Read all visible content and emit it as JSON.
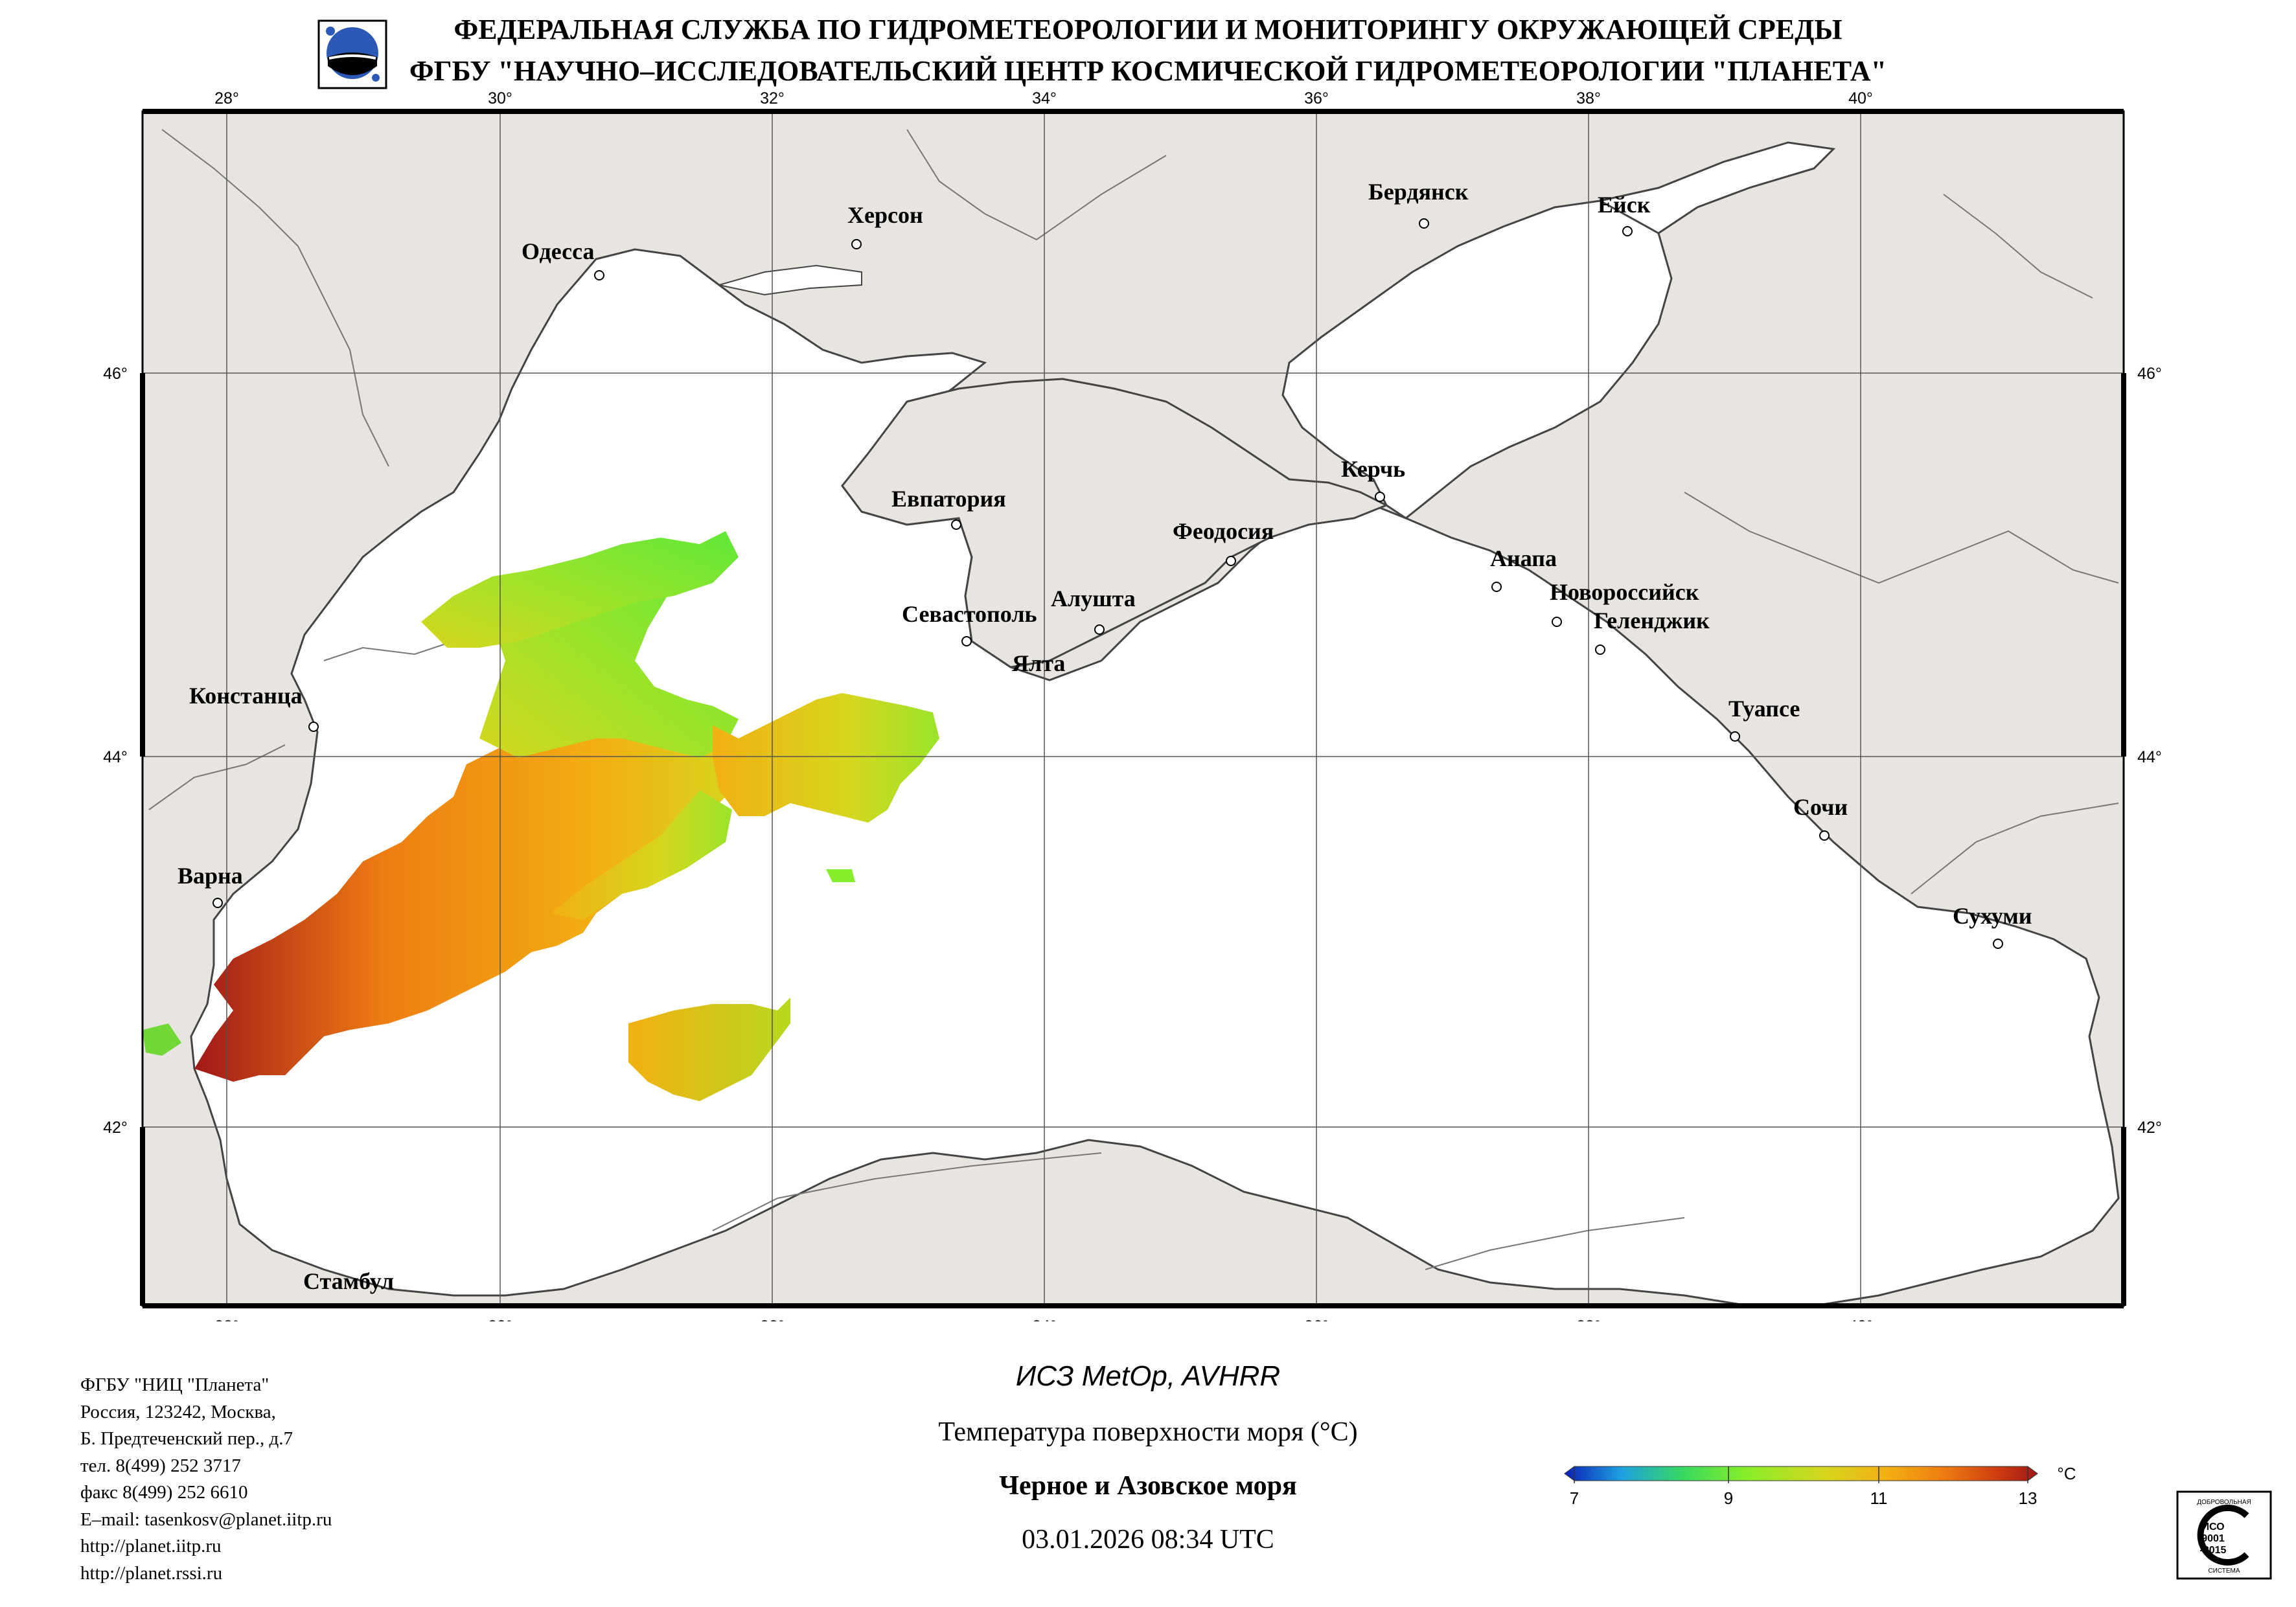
{
  "header": {
    "line1": "ФЕДЕРАЛЬНАЯ СЛУЖБА ПО ГИДРОМЕТЕОРОЛОГИИ И МОНИТОРИНГУ ОКРУЖАЮЩЕЙ СРЕДЫ",
    "line2": "ФГБУ \"НАУЧНО–ИССЛЕДОВАТЕЛЬСКИЙ ЦЕНТР КОСМИЧЕСКОЙ ГИДРОМЕТЕОРОЛОГИИ \"ПЛАНЕТА\""
  },
  "map": {
    "lon_labels": [
      "28°",
      "30°",
      "32°",
      "34°",
      "36°",
      "38°",
      "40°"
    ],
    "lat_labels": [
      "46°",
      "44°",
      "42°"
    ],
    "cities": [
      {
        "name": "Одесса"
      },
      {
        "name": "Херсон"
      },
      {
        "name": "Бердянск"
      },
      {
        "name": "Ейск"
      },
      {
        "name": "Евпатория"
      },
      {
        "name": "Керчь"
      },
      {
        "name": "Феодосия"
      },
      {
        "name": "Анапа"
      },
      {
        "name": "Новороссийск"
      },
      {
        "name": "Геленджик"
      },
      {
        "name": "Севастополь"
      },
      {
        "name": "Алушта"
      },
      {
        "name": "Ялта"
      },
      {
        "name": "Констанца"
      },
      {
        "name": "Туапсе"
      },
      {
        "name": "Сочи"
      },
      {
        "name": "Варна"
      },
      {
        "name": "Сухуми"
      },
      {
        "name": "Стамбул"
      }
    ],
    "colors": {
      "land": "#e8e5e1",
      "sea": "#ffffff",
      "grid": "#555555",
      "coast": "#444444"
    }
  },
  "footer": {
    "org_lines": [
      "ФГБУ \"НИЦ \"Планета\"",
      "Россия, 123242, Москва,",
      "Б. Предтеченский пер., д.7",
      "тел. 8(499) 252 3717",
      "факс 8(499) 252 6610",
      "E–mail: tasenkosv@planet.iitp.ru",
      "http://planet.iitp.ru",
      "http://planet.rssi.ru"
    ],
    "satellite": "ИСЗ MetOp, AVHRR",
    "parameter": "Температура поверхности моря (°С)",
    "region": "Черное и Азовское моря",
    "datetime": "03.01.2026 08:34 UTC"
  },
  "colorbar": {
    "unit": "°C",
    "ticks": [
      "7",
      "9",
      "11",
      "13"
    ],
    "range": [
      7,
      13
    ],
    "colors": [
      "#0a1fb8",
      "#1ea0e0",
      "#37d860",
      "#86ee2a",
      "#d6d61e",
      "#f2b012",
      "#ee7d12",
      "#cc3a10",
      "#a01818"
    ]
  },
  "iso": {
    "line1": "ДОБРОВОЛЬНАЯ",
    "mark": "ИСО",
    "code": "9001",
    "year": "-2015",
    "line2": "СИСТЕМА"
  }
}
